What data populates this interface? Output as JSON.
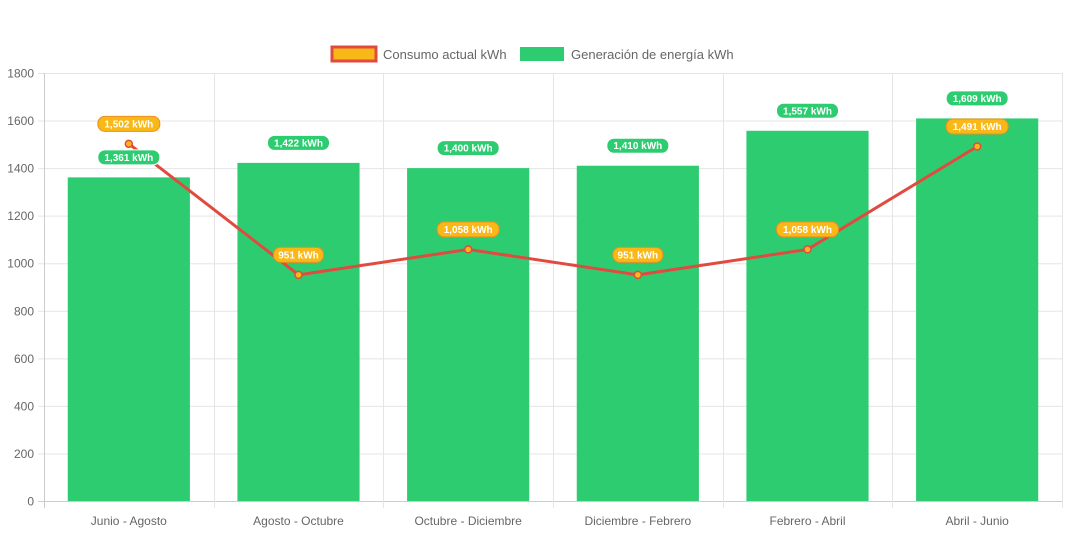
{
  "chart_data": {
    "type": "bar",
    "categories": [
      "Junio - Agosto",
      "Agosto - Octubre",
      "Octubre - Diciembre",
      "Diciembre - Febrero",
      "Febrero - Abril",
      "Abril - Junio"
    ],
    "ylim": [
      0,
      1800
    ],
    "y_ticks": [
      "0",
      "200",
      "400",
      "600",
      "800",
      "1000",
      "1200",
      "1400",
      "1600",
      "1800"
    ],
    "grid": true,
    "legend_position": "top-center",
    "series": [
      {
        "name": "Consumo actual kWh",
        "type": "line",
        "values": [
          1502,
          951,
          1058,
          951,
          1058,
          1491
        ],
        "labels": [
          "1,502 kWh",
          "951 kWh",
          "1,058 kWh",
          "951 kWh",
          "1,058 kWh",
          "1,491 kWh"
        ],
        "color": "#e04a3f",
        "fill_color": "#f9b817"
      },
      {
        "name": "Generación de energía kWh",
        "type": "bar",
        "values": [
          1361,
          1422,
          1400,
          1410,
          1557,
          1609
        ],
        "labels": [
          "1,361 kWh",
          "1,422 kWh",
          "1,400 kWh",
          "1,410 kWh",
          "1,557 kWh",
          "1,609 kWh"
        ],
        "color": "#2ecc71"
      }
    ]
  }
}
